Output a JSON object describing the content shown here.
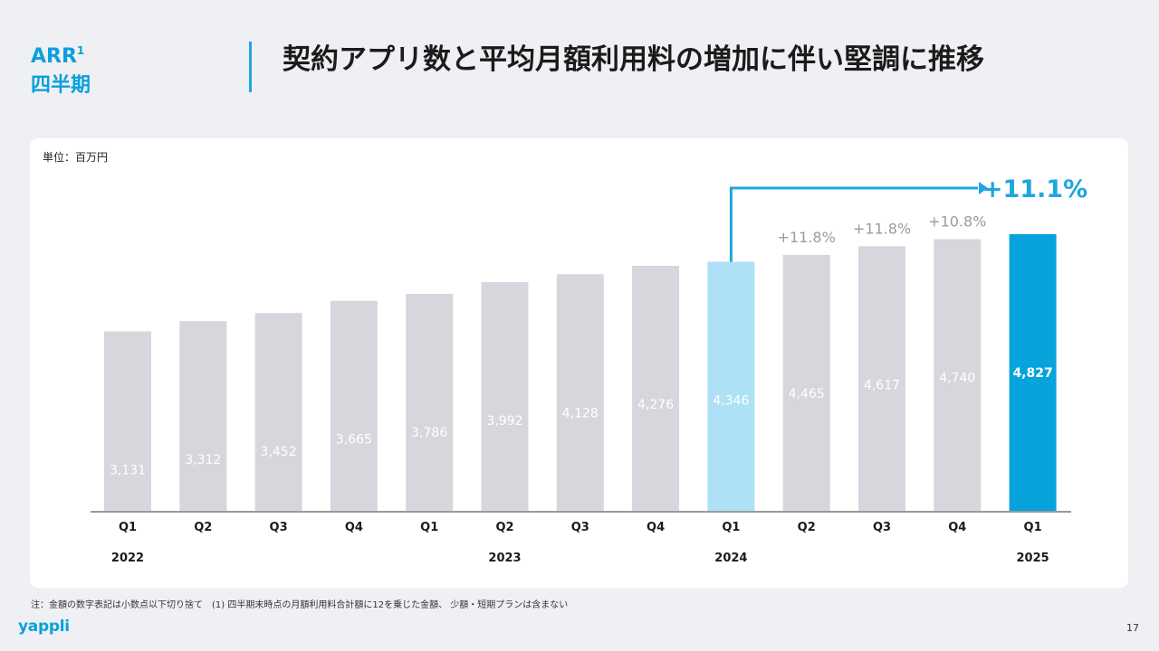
{
  "header": {
    "metric": "ARR",
    "metric_sup": "1",
    "period": "四半期",
    "title": "契約アプリ数と平均月額利用料の増加に伴い堅調に推移"
  },
  "unit_label": "単位：百万円",
  "footnote": "注：金額の数字表記は小数点以下切り捨て　(1) 四半期末時点の月額利用料合計額に12を乗じた金額、 少額・短期プランは含まない",
  "logo": "yappli",
  "page_number": "17",
  "colors": {
    "bar_default": "#d6d7dc",
    "bar_highlight_prev": "#aee1f6",
    "bar_highlight_current": "#06a3dd",
    "accent": "#1ea6e0",
    "growth_label": "#9a9ba0"
  },
  "chart_data": {
    "type": "bar",
    "categories": [
      "Q1",
      "Q2",
      "Q3",
      "Q4",
      "Q1",
      "Q2",
      "Q3",
      "Q4",
      "Q1",
      "Q2",
      "Q3",
      "Q4",
      "Q1"
    ],
    "values": [
      3131,
      3312,
      3452,
      3665,
      3786,
      3992,
      4128,
      4276,
      4346,
      4465,
      4617,
      4740,
      4827
    ],
    "value_labels": [
      "3,131",
      "3,312",
      "3,452",
      "3,665",
      "3,786",
      "3,992",
      "4,128",
      "4,276",
      "4,346",
      "4,465",
      "4,617",
      "4,740",
      "4,827"
    ],
    "years": [
      {
        "label": "2022",
        "index": 0
      },
      {
        "label": "2023",
        "index": 5
      },
      {
        "label": "2024",
        "index": 8
      },
      {
        "label": "2025",
        "index": 12
      }
    ],
    "growth_labels": [
      {
        "index": 9,
        "label": "+11.8%"
      },
      {
        "index": 10,
        "label": "+11.8%"
      },
      {
        "index": 11,
        "label": "+10.8%"
      }
    ],
    "yoy_arrow": {
      "from_index": 8,
      "to_index": 12,
      "label": "+11.1%"
    },
    "highlight_prev_index": 8,
    "highlight_current_index": 12,
    "ylim": [
      0,
      4827
    ],
    "title": "",
    "xlabel": "",
    "ylabel": ""
  }
}
